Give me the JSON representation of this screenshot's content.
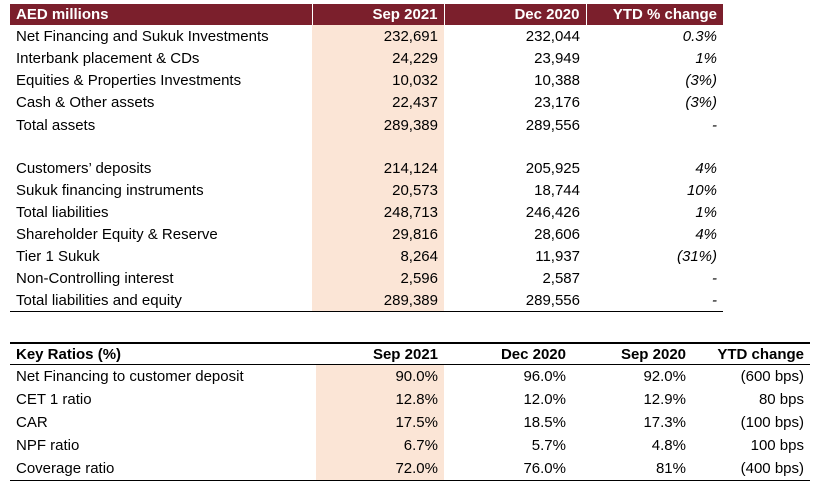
{
  "balance_sheet": {
    "headers": [
      "AED millions",
      "Sep 2021",
      "Dec 2020",
      "YTD % change"
    ],
    "rows": [
      {
        "label": "Net Financing and Sukuk Investments",
        "sep2021": "232,691",
        "dec2020": "232,044",
        "ytd": "0.3%"
      },
      {
        "label": "Interbank placement & CDs",
        "sep2021": "24,229",
        "dec2020": "23,949",
        "ytd": "1%"
      },
      {
        "label": "Equities & Properties Investments",
        "sep2021": "10,032",
        "dec2020": "10,388",
        "ytd": "(3%)"
      },
      {
        "label": "Cash & Other assets",
        "sep2021": "22,437",
        "dec2020": "23,176",
        "ytd": "(3%)"
      },
      {
        "label": "Total assets",
        "sep2021": "289,389",
        "dec2020": "289,556",
        "ytd": "-"
      },
      {
        "label": "Customers’ deposits",
        "sep2021": "214,124",
        "dec2020": "205,925",
        "ytd": "4%"
      },
      {
        "label": "Sukuk financing instruments",
        "sep2021": "20,573",
        "dec2020": "18,744",
        "ytd": "10%"
      },
      {
        "label": "Total liabilities",
        "sep2021": "248,713",
        "dec2020": "246,426",
        "ytd": "1%"
      },
      {
        "label": "Shareholder Equity & Reserve",
        "sep2021": "29,816",
        "dec2020": "28,606",
        "ytd": "4%"
      },
      {
        "label": "Tier 1 Sukuk",
        "sep2021": "8,264",
        "dec2020": "11,937",
        "ytd": "(31%)"
      },
      {
        "label": "Non-Controlling interest",
        "sep2021": "2,596",
        "dec2020": "2,587",
        "ytd": "-"
      },
      {
        "label": "Total liabilities and equity",
        "sep2021": "289,389",
        "dec2020": "289,556",
        "ytd": "-"
      }
    ]
  },
  "key_ratios": {
    "headers": [
      "Key Ratios (%)",
      "Sep 2021",
      "Dec 2020",
      "Sep 2020",
      "YTD change"
    ],
    "rows": [
      {
        "label": "Net Financing to customer deposit",
        "sep2021": "90.0%",
        "dec2020": "96.0%",
        "sep2020": "92.0%",
        "ytd": "(600 bps)"
      },
      {
        "label": "CET 1 ratio",
        "sep2021": "12.8%",
        "dec2020": "12.0%",
        "sep2020": "12.9%",
        "ytd": "80 bps"
      },
      {
        "label": "CAR",
        "sep2021": "17.5%",
        "dec2020": "18.5%",
        "sep2020": "17.3%",
        "ytd": "(100 bps)"
      },
      {
        "label": "NPF ratio",
        "sep2021": "6.7%",
        "dec2020": "5.7%",
        "sep2020": "4.8%",
        "ytd": "100 bps"
      },
      {
        "label": "Coverage ratio",
        "sep2021": "72.0%",
        "dec2020": "76.0%",
        "sep2020": "81%",
        "ytd": "(400 bps)"
      }
    ]
  },
  "colors": {
    "header_bg": "#7b1f2c",
    "highlight": "#fbe5d6"
  }
}
